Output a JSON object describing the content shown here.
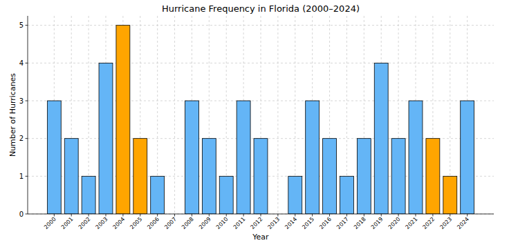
{
  "chart_data": {
    "type": "bar",
    "title": "Hurricane Frequency in Florida (2000–2024)",
    "x_label": "Year",
    "y_label": "Number of Hurricanes",
    "categories": [
      "2000",
      "2001",
      "2002",
      "2003",
      "2004",
      "2005",
      "2006",
      "2007",
      "2008",
      "2009",
      "2010",
      "2011",
      "2012",
      "2013",
      "2014",
      "2015",
      "2016",
      "2017",
      "2018",
      "2019",
      "2020",
      "2021",
      "2022",
      "2023",
      "2024"
    ],
    "values": [
      3,
      2,
      1,
      4,
      5,
      2,
      1,
      0,
      3,
      2,
      1,
      3,
      2,
      0,
      1,
      3,
      2,
      1,
      2,
      4,
      2,
      3,
      2,
      1,
      3
    ],
    "colors": [
      "#64b5f6",
      "#64b5f6",
      "#64b5f6",
      "#64b5f6",
      "#ffa500",
      "#ffa500",
      "#64b5f6",
      "#64b5f6",
      "#64b5f6",
      "#64b5f6",
      "#64b5f6",
      "#64b5f6",
      "#64b5f6",
      "#64b5f6",
      "#64b5f6",
      "#64b5f6",
      "#64b5f6",
      "#64b5f6",
      "#64b5f6",
      "#64b5f6",
      "#64b5f6",
      "#64b5f6",
      "#ffa500",
      "#ffa500",
      "#64b5f6"
    ],
    "ylim": [
      0,
      5.25
    ],
    "yticks": [
      0,
      1,
      2,
      3,
      4,
      5
    ],
    "grid": true
  }
}
